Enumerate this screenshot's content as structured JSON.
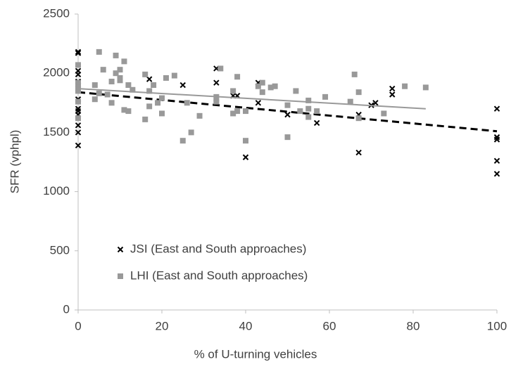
{
  "chart_data": {
    "type": "scatter",
    "xlabel": "% of U-turning vehicles",
    "ylabel": "SFR (vphpl)",
    "xlim": [
      0,
      100
    ],
    "xticks": [
      0,
      20,
      40,
      60,
      80,
      100
    ],
    "ylim": [
      0,
      2500
    ],
    "yticks": [
      0,
      500,
      1000,
      1500,
      2000,
      2500
    ],
    "grid": false,
    "legend": "lower left",
    "series": [
      {
        "name": "JSI (East and South approaches)",
        "color": "#000000",
        "marker": "x",
        "x": [
          0,
          0,
          0,
          0,
          0,
          0,
          0,
          0,
          0,
          0,
          0,
          0,
          0,
          17,
          25,
          33,
          33,
          33,
          37,
          38,
          40,
          43,
          43,
          50,
          57,
          67,
          67,
          70,
          71,
          75,
          75,
          100,
          100,
          100,
          100,
          100
        ],
        "values": [
          2180,
          2170,
          2020,
          1990,
          1930,
          1870,
          1780,
          1700,
          1680,
          1650,
          1560,
          1500,
          1390,
          1950,
          1900,
          2040,
          1920,
          1750,
          1810,
          1810,
          1290,
          1920,
          1750,
          1650,
          1580,
          1650,
          1330,
          1730,
          1750,
          1870,
          1820,
          1700,
          1460,
          1440,
          1260,
          1150
        ],
        "trend_x": [
          0,
          100
        ],
        "trend_y": [
          1840,
          1510
        ],
        "trend_style": "dashed"
      },
      {
        "name": "LHI (East and South approaches)",
        "color": "#999999",
        "marker": "square",
        "x": [
          0,
          0,
          0,
          0,
          0,
          0,
          4,
          4,
          5,
          5,
          6,
          7,
          8,
          8,
          9,
          9,
          10,
          10,
          10,
          11,
          11,
          12,
          12,
          13,
          16,
          16,
          17,
          17,
          18,
          19,
          20,
          20,
          21,
          23,
          25,
          26,
          27,
          29,
          33,
          33,
          34,
          37,
          37,
          38,
          38,
          40,
          40,
          43,
          44,
          44,
          46,
          47,
          50,
          50,
          52,
          53,
          55,
          55,
          55,
          57,
          59,
          65,
          66,
          67,
          67,
          73,
          78,
          83
        ],
        "values": [
          2070,
          1920,
          1880,
          1850,
          1760,
          1620,
          1900,
          1780,
          2180,
          1830,
          2030,
          1820,
          1930,
          1750,
          2000,
          2150,
          1960,
          2030,
          1940,
          2100,
          1690,
          1900,
          1680,
          1860,
          1990,
          1610,
          1720,
          1850,
          1900,
          1750,
          1790,
          1660,
          1960,
          1980,
          1430,
          1750,
          1500,
          1640,
          1800,
          1760,
          2040,
          1850,
          1660,
          1970,
          1680,
          1680,
          1430,
          1890,
          1920,
          1840,
          1880,
          1890,
          1730,
          1460,
          1850,
          1680,
          1770,
          1630,
          1700,
          1680,
          1800,
          1760,
          1990,
          1840,
          1620,
          1660,
          1890,
          1880
        ],
        "trend_x": [
          0,
          83
        ],
        "trend_y": [
          1870,
          1700
        ],
        "trend_style": "solid"
      }
    ]
  }
}
